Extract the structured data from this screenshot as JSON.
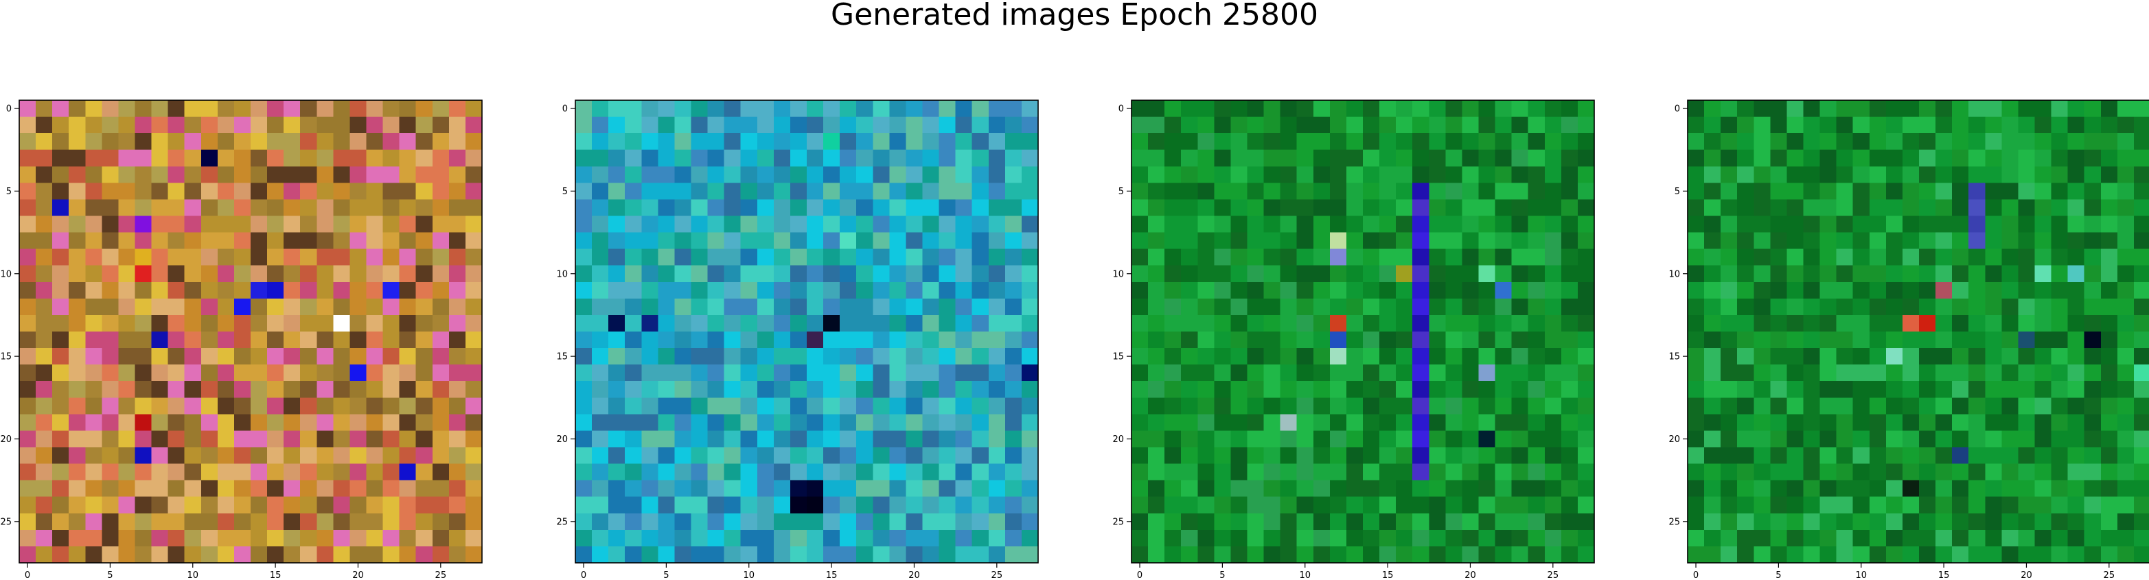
{
  "figure": {
    "title": "Generated images Epoch 25800"
  },
  "chart_data": [
    {
      "type": "heatmap",
      "panel": 1,
      "grid": false,
      "xlim": [
        -0.5,
        27.5
      ],
      "ylim": [
        27.5,
        -0.5
      ],
      "xticks": [
        0,
        5,
        10,
        15,
        20,
        25
      ],
      "yticks": [
        0,
        5,
        10,
        15,
        20,
        25
      ],
      "xlabel": "",
      "ylabel": "",
      "rows": 28,
      "cols": 28,
      "palette": [
        "#d4a23a",
        "#c98a2a",
        "#b8922e",
        "#a88534",
        "#c65a3c",
        "#e07850",
        "#d69a6a",
        "#e0b070",
        "#e0bd3a",
        "#c84a7a",
        "#e070b8",
        "#b0a04e",
        "#9a7a2e",
        "#7e5a2a",
        "#5a3a20"
      ],
      "accents": [
        {
          "row": 3,
          "col": 11,
          "color": "#000044"
        },
        {
          "row": 6,
          "col": 2,
          "color": "#1010c0"
        },
        {
          "row": 7,
          "col": 7,
          "color": "#8010e0"
        },
        {
          "row": 9,
          "col": 7,
          "color": "#e0b020"
        },
        {
          "row": 10,
          "col": 7,
          "color": "#e02020"
        },
        {
          "row": 11,
          "col": 14,
          "color": "#2020e0"
        },
        {
          "row": 11,
          "col": 15,
          "color": "#1010d0"
        },
        {
          "row": 11,
          "col": 22,
          "color": "#2020f0"
        },
        {
          "row": 12,
          "col": 13,
          "color": "#1818f0"
        },
        {
          "row": 13,
          "col": 19,
          "color": "#ffffff"
        },
        {
          "row": 14,
          "col": 8,
          "color": "#1010b0"
        },
        {
          "row": 16,
          "col": 20,
          "color": "#1515f0"
        },
        {
          "row": 19,
          "col": 7,
          "color": "#c01010"
        },
        {
          "row": 21,
          "col": 7,
          "color": "#1010c0"
        },
        {
          "row": 22,
          "col": 23,
          "color": "#1010d0"
        }
      ]
    },
    {
      "type": "heatmap",
      "panel": 2,
      "grid": false,
      "xlim": [
        -0.5,
        27.5
      ],
      "ylim": [
        27.5,
        -0.5
      ],
      "xticks": [
        0,
        5,
        10,
        15,
        20,
        25
      ],
      "yticks": [
        0,
        5,
        10,
        15,
        20,
        25
      ],
      "xlabel": "",
      "ylabel": "",
      "rows": 28,
      "cols": 28,
      "palette": [
        "#20a0c8",
        "#10b0d0",
        "#30c0c0",
        "#2090b0",
        "#40a8b8",
        "#10c8e0",
        "#3a88c0",
        "#20b8a8",
        "#50b0c8",
        "#1878b0",
        "#60c0a0",
        "#10a090",
        "#2c70a0",
        "#40d0c0"
      ],
      "accents": [
        {
          "row": 2,
          "col": 15,
          "color": "#10d0a0"
        },
        {
          "row": 8,
          "col": 16,
          "color": "#50e0c0"
        },
        {
          "row": 13,
          "col": 2,
          "color": "#001050"
        },
        {
          "row": 13,
          "col": 4,
          "color": "#0a2080"
        },
        {
          "row": 13,
          "col": 15,
          "color": "#000820"
        },
        {
          "row": 14,
          "col": 14,
          "color": "#3a2050"
        },
        {
          "row": 16,
          "col": 27,
          "color": "#001070"
        },
        {
          "row": 23,
          "col": 13,
          "color": "#000840"
        },
        {
          "row": 23,
          "col": 14,
          "color": "#000430"
        },
        {
          "row": 24,
          "col": 13,
          "color": "#000020"
        },
        {
          "row": 24,
          "col": 14,
          "color": "#000018"
        }
      ]
    },
    {
      "type": "heatmap",
      "panel": 3,
      "grid": false,
      "xlim": [
        -0.5,
        27.5
      ],
      "ylim": [
        27.5,
        -0.5
      ],
      "xticks": [
        0,
        5,
        10,
        15,
        20,
        25
      ],
      "yticks": [
        0,
        5,
        10,
        15,
        20,
        25
      ],
      "xlabel": "",
      "ylabel": "",
      "rows": 28,
      "cols": 28,
      "palette": [
        "#0a8a2a",
        "#14a030",
        "#0c7a24",
        "#1aa840",
        "#0e9a34",
        "#087020",
        "#20b848",
        "#106a22",
        "#18942c",
        "#0a6020",
        "#28a050"
      ],
      "band": {
        "col": 17,
        "row_from": 5,
        "row_to": 22,
        "colors": [
          "#2c18d0",
          "#3a20e0",
          "#2010b0",
          "#4a30c8"
        ]
      },
      "accents": [
        {
          "row": 8,
          "col": 12,
          "color": "#c0e0a0"
        },
        {
          "row": 9,
          "col": 12,
          "color": "#8088d8"
        },
        {
          "row": 10,
          "col": 16,
          "color": "#a0a020"
        },
        {
          "row": 10,
          "col": 21,
          "color": "#60e0a0"
        },
        {
          "row": 11,
          "col": 22,
          "color": "#3070d0"
        },
        {
          "row": 13,
          "col": 12,
          "color": "#d04020"
        },
        {
          "row": 14,
          "col": 12,
          "color": "#2050c0"
        },
        {
          "row": 15,
          "col": 12,
          "color": "#a0e0c0"
        },
        {
          "row": 16,
          "col": 21,
          "color": "#80a0d0"
        },
        {
          "row": 19,
          "col": 9,
          "color": "#a0c0c0"
        },
        {
          "row": 20,
          "col": 21,
          "color": "#002030"
        }
      ]
    },
    {
      "type": "heatmap",
      "panel": 4,
      "grid": false,
      "xlim": [
        -0.5,
        27.5
      ],
      "ylim": [
        27.5,
        -0.5
      ],
      "xticks": [
        0,
        5,
        10,
        15,
        20,
        25
      ],
      "yticks": [
        0,
        5,
        10,
        15,
        20,
        25
      ],
      "xlabel": "",
      "ylabel": "",
      "rows": 28,
      "cols": 28,
      "palette": [
        "#0a8a2a",
        "#14a030",
        "#0c7a24",
        "#1aa840",
        "#0e9a34",
        "#087020",
        "#20b848",
        "#106a22",
        "#18942c",
        "#0a6020",
        "#30b860"
      ],
      "band": {
        "col": 17,
        "row_from": 5,
        "row_to": 8,
        "colors": [
          "#3a40b0",
          "#4a50c0"
        ]
      },
      "accents": [
        {
          "row": 10,
          "col": 21,
          "color": "#60e0b0"
        },
        {
          "row": 10,
          "col": 23,
          "color": "#50c8c0"
        },
        {
          "row": 11,
          "col": 15,
          "color": "#b05060"
        },
        {
          "row": 13,
          "col": 14,
          "color": "#d02010"
        },
        {
          "row": 13,
          "col": 13,
          "color": "#e06040"
        },
        {
          "row": 14,
          "col": 24,
          "color": "#000820"
        },
        {
          "row": 14,
          "col": 20,
          "color": "#1a5070"
        },
        {
          "row": 15,
          "col": 12,
          "color": "#80e0c0"
        },
        {
          "row": 16,
          "col": 27,
          "color": "#40e0a0"
        },
        {
          "row": 21,
          "col": 16,
          "color": "#1a4080"
        },
        {
          "row": 23,
          "col": 13,
          "color": "#0a2010"
        }
      ]
    }
  ]
}
